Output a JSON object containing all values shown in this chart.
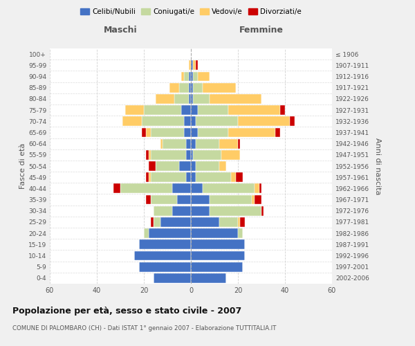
{
  "age_groups": [
    "0-4",
    "5-9",
    "10-14",
    "15-19",
    "20-24",
    "25-29",
    "30-34",
    "35-39",
    "40-44",
    "45-49",
    "50-54",
    "55-59",
    "60-64",
    "65-69",
    "70-74",
    "75-79",
    "80-84",
    "85-89",
    "90-94",
    "95-99",
    "100+"
  ],
  "birth_years": [
    "2002-2006",
    "1997-2001",
    "1992-1996",
    "1987-1991",
    "1982-1986",
    "1977-1981",
    "1972-1976",
    "1967-1971",
    "1962-1966",
    "1957-1961",
    "1952-1956",
    "1947-1951",
    "1942-1946",
    "1937-1941",
    "1932-1936",
    "1927-1931",
    "1922-1926",
    "1917-1921",
    "1912-1916",
    "1907-1911",
    "≤ 1906"
  ],
  "maschi": {
    "celibi": [
      16,
      22,
      24,
      22,
      18,
      13,
      8,
      6,
      8,
      2,
      5,
      2,
      2,
      3,
      3,
      4,
      1,
      1,
      1,
      0,
      0
    ],
    "coniugati": [
      0,
      0,
      0,
      0,
      2,
      3,
      8,
      11,
      22,
      15,
      10,
      15,
      10,
      14,
      18,
      16,
      6,
      4,
      2,
      0,
      0
    ],
    "vedovi": [
      0,
      0,
      0,
      0,
      0,
      0,
      0,
      0,
      0,
      1,
      0,
      1,
      1,
      2,
      8,
      8,
      8,
      4,
      1,
      1,
      0
    ],
    "divorziati": [
      0,
      0,
      0,
      0,
      0,
      1,
      0,
      2,
      3,
      1,
      3,
      1,
      0,
      2,
      0,
      0,
      0,
      0,
      0,
      0,
      0
    ]
  },
  "femmine": {
    "nubili": [
      15,
      22,
      23,
      23,
      20,
      12,
      8,
      8,
      5,
      2,
      2,
      1,
      2,
      3,
      2,
      3,
      1,
      1,
      1,
      1,
      0
    ],
    "coniugate": [
      0,
      0,
      0,
      0,
      2,
      8,
      22,
      18,
      22,
      15,
      10,
      12,
      10,
      13,
      18,
      13,
      7,
      4,
      2,
      0,
      0
    ],
    "vedove": [
      0,
      0,
      0,
      0,
      0,
      1,
      0,
      1,
      2,
      2,
      3,
      8,
      8,
      20,
      22,
      22,
      22,
      14,
      5,
      1,
      0
    ],
    "divorziate": [
      0,
      0,
      0,
      0,
      0,
      2,
      1,
      3,
      1,
      3,
      0,
      0,
      1,
      2,
      2,
      2,
      0,
      0,
      0,
      1,
      0
    ]
  },
  "colors": {
    "celibi_nubili": "#4472C4",
    "coniugati": "#C5D9A0",
    "vedovi": "#FFCC66",
    "divorziati": "#CC0000"
  },
  "title": "Popolazione per età, sesso e stato civile - 2007",
  "subtitle": "COMUNE DI PALOMBARO (CH) - Dati ISTAT 1° gennaio 2007 - Elaborazione TUTTITALIA.IT",
  "xlabel_maschi": "Maschi",
  "xlabel_femmine": "Femmine",
  "ylabel": "Fasce di età",
  "ylabel_right": "Anni di nascita",
  "xlim": 60,
  "legend_labels": [
    "Celibi/Nubili",
    "Coniugati/e",
    "Vedovi/e",
    "Divorziati/e"
  ],
  "bg_color": "#f0f0f0",
  "plot_bg": "#ffffff",
  "grid_color": "#cccccc"
}
